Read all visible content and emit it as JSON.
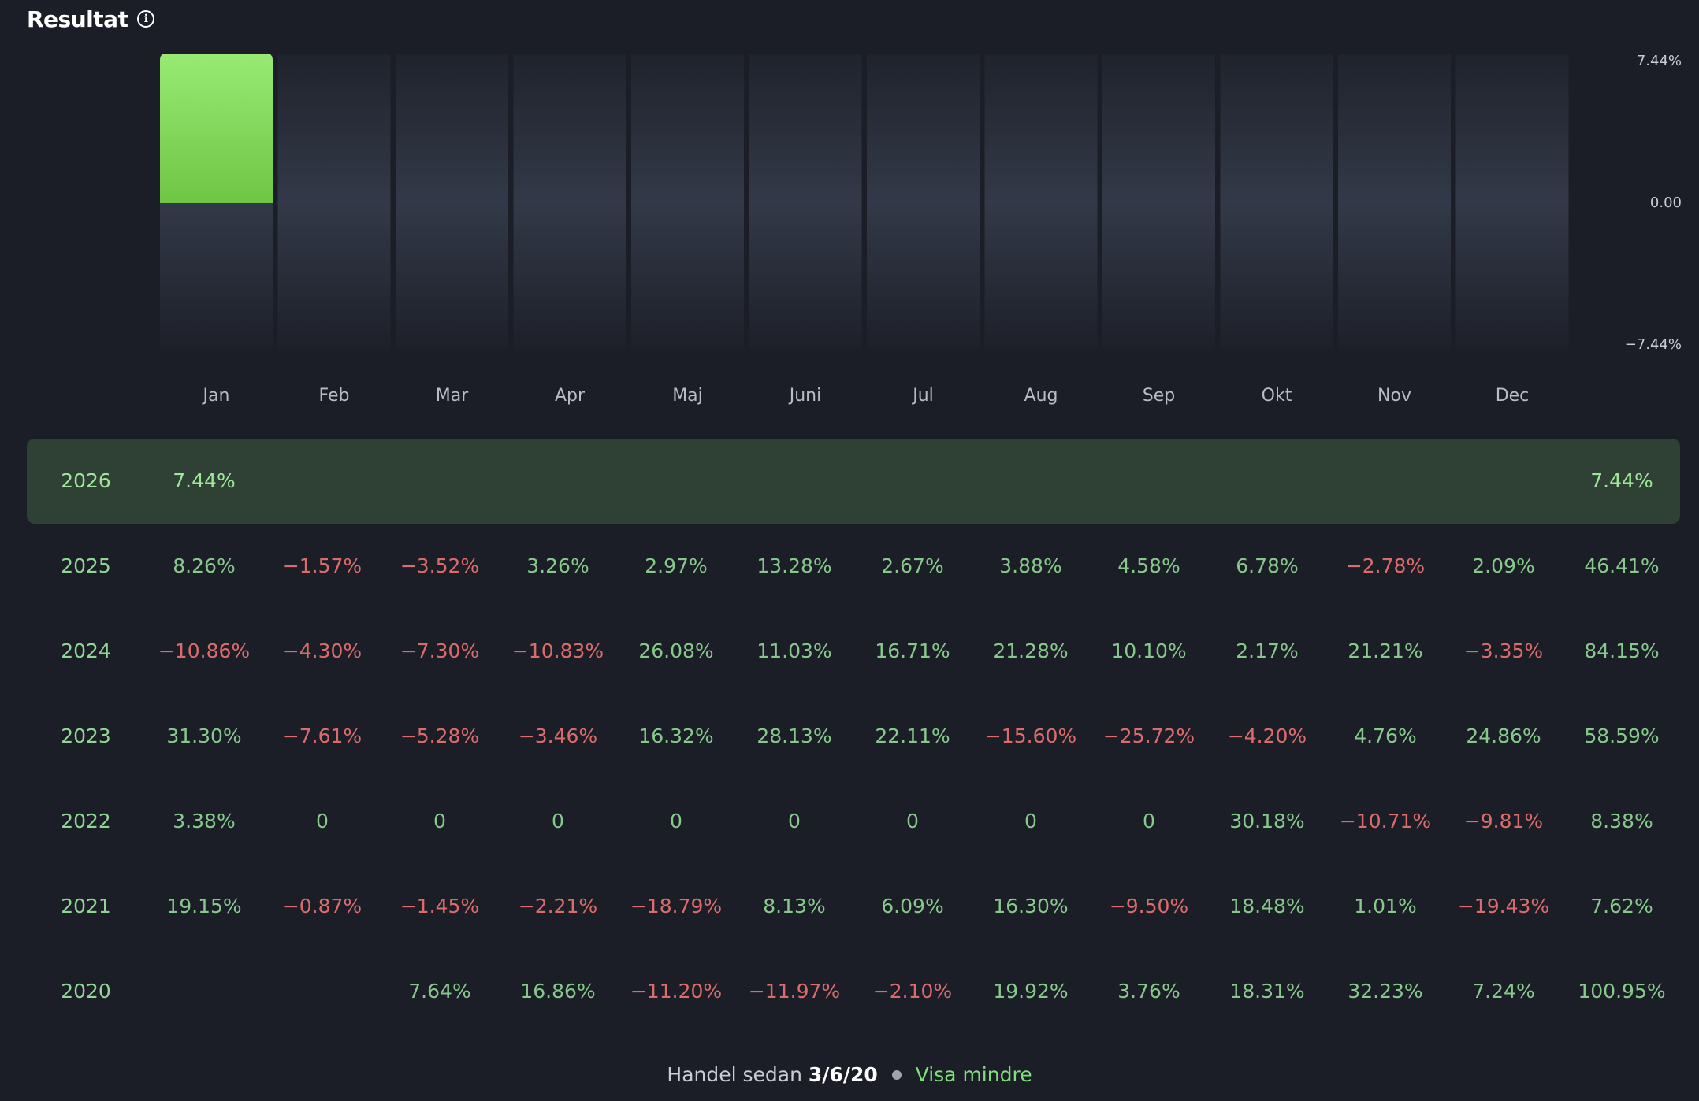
{
  "header": {
    "title": "Resultat",
    "info_icon": "info-icon"
  },
  "chart_data": {
    "type": "bar",
    "categories": [
      "Jan",
      "Feb",
      "Mar",
      "Apr",
      "Maj",
      "Juni",
      "Jul",
      "Aug",
      "Sep",
      "Okt",
      "Nov",
      "Dec"
    ],
    "values": [
      7.44,
      null,
      null,
      null,
      null,
      null,
      null,
      null,
      null,
      null,
      null,
      null
    ],
    "ylim": [
      -7.44,
      7.44
    ],
    "yticks": [
      "7.44%",
      "0.00",
      "-7.44%"
    ],
    "bar_color": "#7ed957",
    "track_color": "#2c313d"
  },
  "table": {
    "rows": [
      {
        "year": "2026",
        "current": true,
        "values": [
          "7.44%",
          "",
          "",
          "",
          "",
          "",
          "",
          "",
          "",
          "",
          "",
          ""
        ],
        "total": "7.44%"
      },
      {
        "year": "2025",
        "current": false,
        "values": [
          "8.26%",
          "-1.57%",
          "-3.52%",
          "3.26%",
          "2.97%",
          "13.28%",
          "2.67%",
          "3.88%",
          "4.58%",
          "6.78%",
          "-2.78%",
          "2.09%"
        ],
        "total": "46.41%"
      },
      {
        "year": "2024",
        "current": false,
        "values": [
          "-10.86%",
          "-4.30%",
          "-7.30%",
          "-10.83%",
          "26.08%",
          "11.03%",
          "16.71%",
          "21.28%",
          "10.10%",
          "2.17%",
          "21.21%",
          "-3.35%"
        ],
        "total": "84.15%"
      },
      {
        "year": "2023",
        "current": false,
        "values": [
          "31.30%",
          "-7.61%",
          "-5.28%",
          "-3.46%",
          "16.32%",
          "28.13%",
          "22.11%",
          "-15.60%",
          "-25.72%",
          "-4.20%",
          "4.76%",
          "24.86%"
        ],
        "total": "58.59%"
      },
      {
        "year": "2022",
        "current": false,
        "values": [
          "3.38%",
          "0",
          "0",
          "0",
          "0",
          "0",
          "0",
          "0",
          "0",
          "30.18%",
          "-10.71%",
          "-9.81%"
        ],
        "total": "8.38%"
      },
      {
        "year": "2021",
        "current": false,
        "values": [
          "19.15%",
          "-0.87%",
          "-1.45%",
          "-2.21%",
          "-18.79%",
          "8.13%",
          "6.09%",
          "16.30%",
          "-9.50%",
          "18.48%",
          "1.01%",
          "-19.43%"
        ],
        "total": "7.62%"
      },
      {
        "year": "2020",
        "current": false,
        "values": [
          "",
          "",
          "7.64%",
          "16.86%",
          "-11.20%",
          "-11.97%",
          "-2.10%",
          "19.92%",
          "3.76%",
          "18.31%",
          "32.23%",
          "7.24%"
        ],
        "total": "100.95%"
      }
    ]
  },
  "footer": {
    "prefix": "Handel sedan",
    "date": "3/6/20",
    "link": "Visa mindre"
  }
}
